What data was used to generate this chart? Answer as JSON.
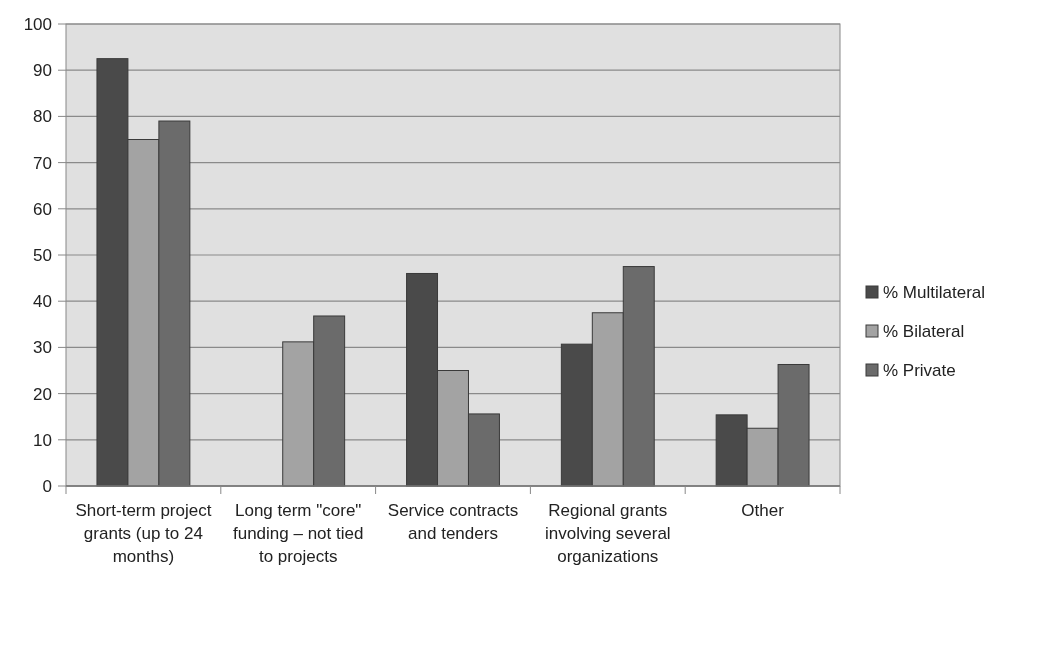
{
  "chart_data": {
    "type": "bar",
    "categories": [
      "Short-term project grants (up to 24 months)",
      "Long term \"core\" funding – not tied to projects",
      "Service contracts and tenders",
      "Regional grants involving several organizations",
      "Other"
    ],
    "series": [
      {
        "name": "% Multilateral",
        "color": "#4a4a4a",
        "values": [
          92.5,
          null,
          46,
          30.7,
          15.4
        ]
      },
      {
        "name": "% Bilateral",
        "color": "#a3a3a3",
        "values": [
          75,
          31.2,
          25,
          37.5,
          12.5
        ]
      },
      {
        "name": "% Private",
        "color": "#6b6b6b",
        "values": [
          79,
          36.8,
          15.6,
          47.5,
          26.3
        ]
      }
    ],
    "ylim": [
      0,
      100
    ],
    "yticks": [
      0,
      10,
      20,
      30,
      40,
      50,
      60,
      70,
      80,
      90,
      100
    ],
    "grid": "y",
    "legend": "right"
  }
}
